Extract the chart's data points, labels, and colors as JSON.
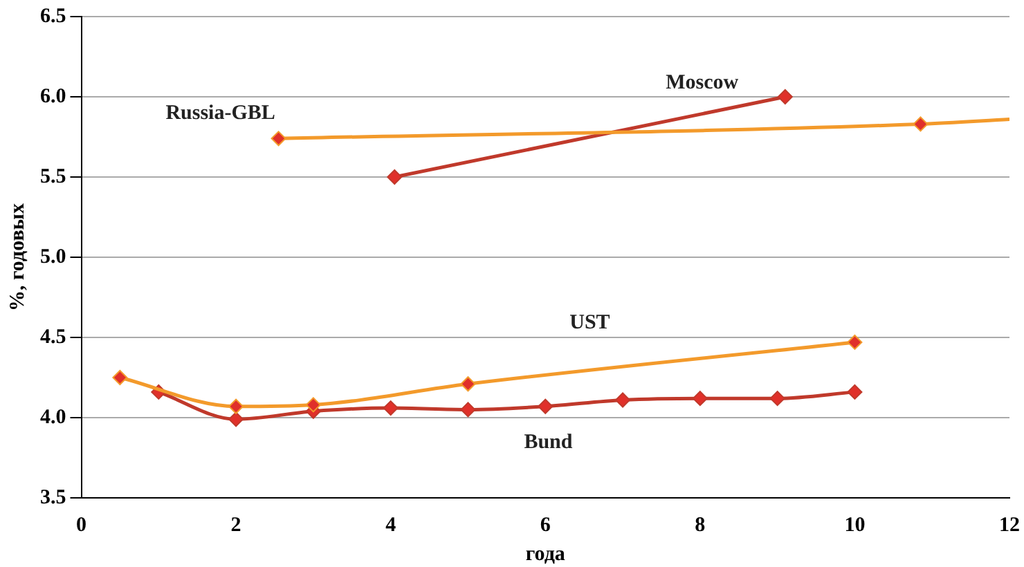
{
  "chart_data": {
    "type": "line",
    "xlabel": "года",
    "ylabel": "%, годовых",
    "xlim": [
      0,
      12
    ],
    "xticks": [
      0,
      2,
      4,
      6,
      8,
      10,
      12
    ],
    "ylim": [
      3.5,
      6.5
    ],
    "yticks": [
      {
        "value": 3.5,
        "label": "3.5"
      },
      {
        "value": 4,
        "label": "4.0"
      },
      {
        "value": 4.5,
        "label": "4.5"
      },
      {
        "value": 5,
        "label": "5.0"
      },
      {
        "value": 5.5,
        "label": "5.5"
      },
      {
        "value": 6,
        "label": "6.0"
      },
      {
        "value": 6.5,
        "label": "6.5"
      }
    ],
    "grid": "y",
    "legend": false,
    "marker": "diamond",
    "line_style": "solid",
    "series": [
      {
        "name": "Russia-GBL",
        "color": "#f39a2b",
        "x": [
          2.55,
          10.85,
          12
        ],
        "values": [
          5.74,
          5.83,
          5.86
        ]
      },
      {
        "name": "Moscow",
        "color": "#c0392b",
        "x": [
          4.05,
          9.1
        ],
        "values": [
          5.5,
          6.0
        ]
      },
      {
        "name": "UST",
        "color": "#f39a2b",
        "x": [
          0.5,
          2,
          3,
          5,
          10
        ],
        "values": [
          4.25,
          4.07,
          4.08,
          4.21,
          4.47
        ]
      },
      {
        "name": "Bund",
        "color": "#c0392b",
        "x": [
          1,
          2,
          3,
          4,
          5,
          6,
          7,
          8,
          9,
          10
        ],
        "values": [
          4.16,
          3.99,
          4.04,
          4.06,
          4.05,
          4.07,
          4.11,
          4.12,
          4.12,
          4.16
        ]
      }
    ]
  }
}
